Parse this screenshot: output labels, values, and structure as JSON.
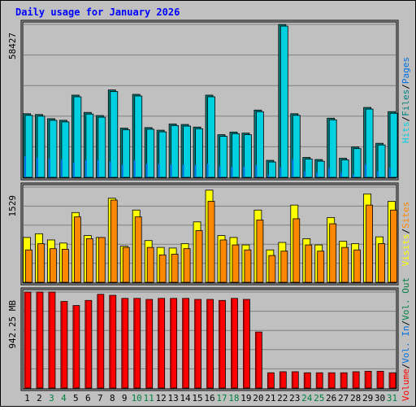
{
  "title": "Daily usage for January 2026",
  "colors": {
    "background": "#c0c0c0",
    "grid": "#808080",
    "hits": "#00d0e0",
    "files": "#008080",
    "pages": "#0070e0",
    "visits": "#ffff00",
    "sites": "#ff8800",
    "volume": "#ff0000",
    "weekend_day": "#008040",
    "weekday": "#000000",
    "title": "#0000ff"
  },
  "chart_data": [
    {
      "type": "bar",
      "name": "hits-files-pages",
      "y_max_label": "58427",
      "ylim": [
        0,
        58427
      ],
      "legend": [
        "Hits",
        "/",
        "Files",
        "/",
        "Pages"
      ],
      "categories": [
        "1",
        "2",
        "3",
        "4",
        "5",
        "6",
        "7",
        "8",
        "9",
        "10",
        "11",
        "12",
        "13",
        "14",
        "15",
        "16",
        "17",
        "18",
        "19",
        "20",
        "21",
        "22",
        "23",
        "24",
        "25",
        "26",
        "27",
        "28",
        "29",
        "30",
        "31"
      ],
      "series": [
        {
          "name": "Hits",
          "values": [
            24300,
            24000,
            22400,
            21800,
            31400,
            24800,
            23600,
            33400,
            18800,
            31700,
            19000,
            18000,
            20400,
            20200,
            19200,
            31400,
            16300,
            17300,
            16900,
            25700,
            6500,
            58400,
            24300,
            7600,
            6800,
            22600,
            7300,
            11600,
            26700,
            13000,
            25100
          ]
        },
        {
          "name": "Files",
          "values": [
            24300,
            24000,
            22400,
            21800,
            31400,
            24800,
            23600,
            33400,
            18800,
            31700,
            19000,
            18000,
            20400,
            20200,
            19200,
            31400,
            16300,
            17300,
            16900,
            25700,
            6500,
            58400,
            24300,
            7600,
            6800,
            22600,
            7300,
            11600,
            26700,
            13000,
            25100
          ]
        },
        {
          "name": "Pages",
          "values": [
            8000,
            7600,
            7200,
            6800,
            5600,
            6500,
            6600,
            6000,
            4800,
            6500,
            5200,
            5100,
            5000,
            4800,
            4800,
            5200,
            4200,
            4000,
            4100,
            4600,
            1000,
            3800,
            6900,
            2200,
            1800,
            3600,
            2000,
            1100,
            5000,
            2400,
            3700
          ]
        }
      ]
    },
    {
      "type": "bar",
      "name": "visits-sites",
      "y_max_label": "1529",
      "ylim": [
        0,
        1529
      ],
      "legend": [
        "Visits",
        "/",
        "Sites"
      ],
      "categories": [
        "1",
        "2",
        "3",
        "4",
        "5",
        "6",
        "7",
        "8",
        "9",
        "10",
        "11",
        "12",
        "13",
        "14",
        "15",
        "16",
        "17",
        "18",
        "19",
        "20",
        "21",
        "22",
        "23",
        "24",
        "25",
        "26",
        "27",
        "28",
        "29",
        "30",
        "31"
      ],
      "series": [
        {
          "name": "Visits",
          "values": [
            720,
            780,
            680,
            630,
            1120,
            750,
            720,
            1350,
            580,
            1160,
            670,
            560,
            550,
            620,
            970,
            1480,
            750,
            720,
            600,
            1160,
            520,
            640,
            1240,
            700,
            600,
            1040,
            660,
            620,
            1420,
            730,
            1300
          ]
        },
        {
          "name": "Sites",
          "values": [
            520,
            620,
            540,
            530,
            1050,
            700,
            720,
            1320,
            560,
            1050,
            560,
            440,
            450,
            540,
            830,
            1300,
            680,
            600,
            520,
            1000,
            430,
            500,
            1020,
            600,
            500,
            940,
            560,
            520,
            1240,
            620,
            1160
          ]
        }
      ]
    },
    {
      "type": "bar",
      "name": "volume",
      "y_max_label": "942.25 MB",
      "ylim": [
        0,
        942.25
      ],
      "legend": [
        "Volume",
        "/",
        "Vol. In",
        "/",
        "Vol. Out"
      ],
      "categories": [
        "1",
        "2",
        "3",
        "4",
        "5",
        "6",
        "7",
        "8",
        "9",
        "10",
        "11",
        "12",
        "13",
        "14",
        "15",
        "16",
        "17",
        "18",
        "19",
        "20",
        "21",
        "22",
        "23",
        "24",
        "25",
        "26",
        "27",
        "28",
        "29",
        "30",
        "31"
      ],
      "series": [
        {
          "name": "Volume",
          "values": [
            942,
            942,
            942,
            850,
            810,
            860,
            920,
            910,
            880,
            880,
            870,
            880,
            880,
            880,
            870,
            870,
            860,
            880,
            870,
            550,
            150,
            160,
            160,
            150,
            150,
            150,
            150,
            160,
            165,
            165,
            150
          ]
        }
      ]
    }
  ],
  "day_labels": [
    {
      "text": "1",
      "weekend": false
    },
    {
      "text": "2",
      "weekend": false
    },
    {
      "text": "3",
      "weekend": true
    },
    {
      "text": "4",
      "weekend": true
    },
    {
      "text": "5",
      "weekend": false
    },
    {
      "text": "6",
      "weekend": false
    },
    {
      "text": "7",
      "weekend": false
    },
    {
      "text": "8",
      "weekend": false
    },
    {
      "text": "9",
      "weekend": false
    },
    {
      "text": "10",
      "weekend": true
    },
    {
      "text": "11",
      "weekend": true
    },
    {
      "text": "12",
      "weekend": false
    },
    {
      "text": "13",
      "weekend": false
    },
    {
      "text": "14",
      "weekend": false
    },
    {
      "text": "15",
      "weekend": false
    },
    {
      "text": "16",
      "weekend": false
    },
    {
      "text": "17",
      "weekend": true
    },
    {
      "text": "18",
      "weekend": true
    },
    {
      "text": "19",
      "weekend": false
    },
    {
      "text": "20",
      "weekend": false
    },
    {
      "text": "21",
      "weekend": false
    },
    {
      "text": "22",
      "weekend": false
    },
    {
      "text": "23",
      "weekend": false
    },
    {
      "text": "24",
      "weekend": true
    },
    {
      "text": "25",
      "weekend": true
    },
    {
      "text": "26",
      "weekend": false
    },
    {
      "text": "27",
      "weekend": false
    },
    {
      "text": "28",
      "weekend": false
    },
    {
      "text": "29",
      "weekend": false
    },
    {
      "text": "30",
      "weekend": false
    },
    {
      "text": "31",
      "weekend": true
    }
  ]
}
